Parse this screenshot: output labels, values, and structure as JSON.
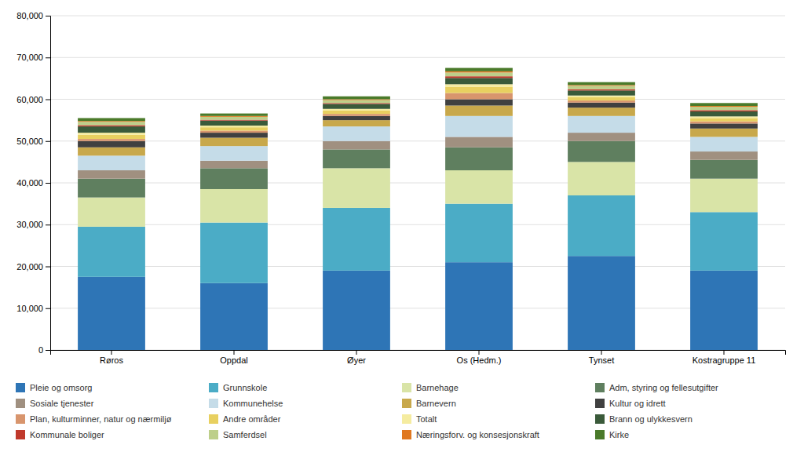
{
  "chart_data": {
    "type": "bar",
    "stacked": true,
    "grid": true,
    "legend": "bottom",
    "categories": [
      "Røros",
      "Oppdal",
      "Øyer",
      "Os (Hedm.)",
      "Tynset",
      "Kostragruppe 11"
    ],
    "series": [
      {
        "name": "Pleie og omsorg",
        "color": "#2E75B6",
        "values": [
          17500,
          16000,
          19000,
          21000,
          22500,
          19000
        ]
      },
      {
        "name": "Grunnskole",
        "color": "#4BACC6",
        "values": [
          12000,
          14500,
          15000,
          14000,
          14500,
          14000
        ]
      },
      {
        "name": "Barnehage",
        "color": "#D9E4A7",
        "values": [
          7000,
          8000,
          9500,
          8000,
          8000,
          8000
        ]
      },
      {
        "name": "Adm, styring og fellesutgifter",
        "color": "#5F7F5F",
        "values": [
          4500,
          5000,
          4500,
          5500,
          5000,
          4500
        ]
      },
      {
        "name": "Sosiale tjenester",
        "color": "#A09080",
        "values": [
          2000,
          1800,
          2000,
          2500,
          2000,
          2000
        ]
      },
      {
        "name": "Kommunehelse",
        "color": "#C5DCE8",
        "values": [
          3500,
          3500,
          3500,
          5000,
          4000,
          3500
        ]
      },
      {
        "name": "Barnevern",
        "color": "#C8A84B",
        "values": [
          2000,
          2000,
          1500,
          2500,
          2000,
          2000
        ]
      },
      {
        "name": "Kultur og idrett",
        "color": "#404040",
        "values": [
          1500,
          1200,
          1000,
          1500,
          1200,
          1200
        ]
      },
      {
        "name": "Plan, kulturminner, natur og nærmiljø",
        "color": "#D8956D",
        "values": [
          500,
          500,
          500,
          1500,
          500,
          500
        ]
      },
      {
        "name": "Andre områder",
        "color": "#E8D060",
        "values": [
          1000,
          800,
          800,
          1500,
          800,
          800
        ]
      },
      {
        "name": "Totalt",
        "color": "#F5ECA0",
        "values": [
          500,
          400,
          400,
          600,
          400,
          400
        ]
      },
      {
        "name": "Brann og ulykkesvern",
        "color": "#3A5A3A",
        "values": [
          1500,
          1200,
          1200,
          1500,
          1200,
          1200
        ]
      },
      {
        "name": "Kommunale boliger",
        "color": "#C0392B",
        "values": [
          300,
          200,
          200,
          400,
          300,
          300
        ]
      },
      {
        "name": "Samferdsel",
        "color": "#BDCF8A",
        "values": [
          800,
          700,
          700,
          900,
          800,
          800
        ]
      },
      {
        "name": "Næringsforv. og konsesjonskraft",
        "color": "#E07820",
        "values": [
          200,
          200,
          200,
          300,
          200,
          200
        ]
      },
      {
        "name": "Kirke",
        "color": "#4A7A2A",
        "values": [
          700,
          600,
          700,
          800,
          700,
          700
        ]
      }
    ],
    "ylim": [
      0,
      80000
    ],
    "yticks": [
      0,
      {
        "value": 10000,
        "label": "10,000"
      },
      {
        "value": 20000,
        "label": "20,000"
      },
      {
        "value": 30000,
        "label": "30,000"
      },
      {
        "value": 40000,
        "label": "40,000"
      },
      {
        "value": 50000,
        "label": "50,000"
      },
      {
        "value": 60000,
        "label": "60,000"
      },
      {
        "value": 70000,
        "label": "70,000"
      },
      {
        "value": 80000,
        "label": "80,000"
      }
    ]
  }
}
